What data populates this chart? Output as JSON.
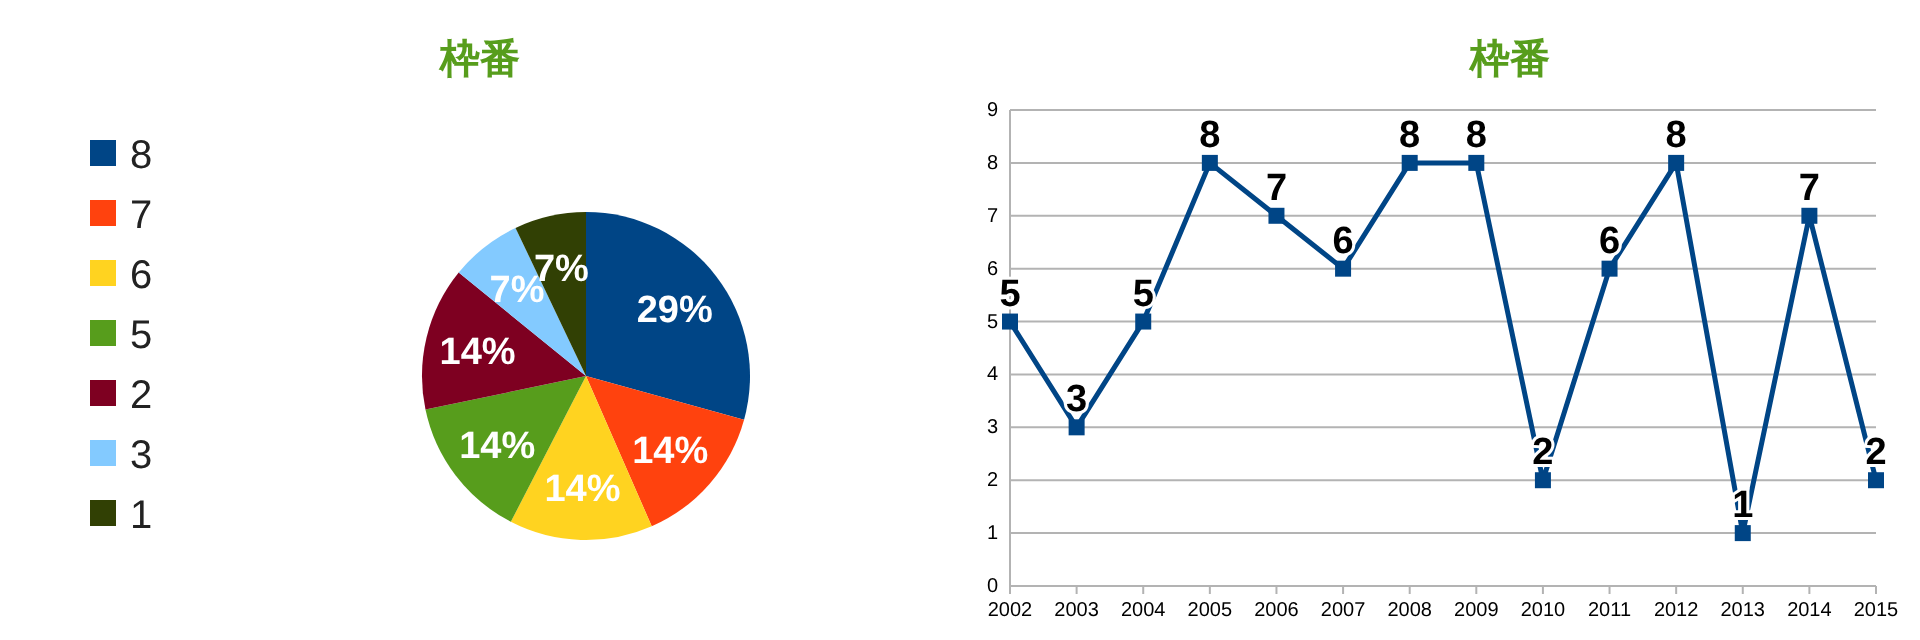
{
  "chart_data": [
    {
      "type": "pie",
      "title": "枠番",
      "categories": [
        "8",
        "7",
        "6",
        "5",
        "2",
        "3",
        "1"
      ],
      "values": [
        29,
        14,
        14,
        14,
        14,
        7,
        7
      ],
      "colors": [
        "#004586",
        "#ff420e",
        "#ffd320",
        "#579d1c",
        "#7e0021",
        "#83caff",
        "#314004"
      ],
      "value_labels": [
        "29%",
        "14%",
        "14%",
        "14%",
        "14%",
        "7%",
        "7%"
      ],
      "legend": "left"
    },
    {
      "type": "line",
      "title": "枠番",
      "categories": [
        "2002",
        "2003",
        "2004",
        "2005",
        "2006",
        "2007",
        "2008",
        "2009",
        "2010",
        "2011",
        "2012",
        "2013",
        "2014",
        "2015"
      ],
      "series": [
        {
          "color": "#004586",
          "values": [
            5,
            3,
            5,
            8,
            7,
            6,
            8,
            8,
            2,
            6,
            8,
            1,
            7,
            2
          ]
        }
      ],
      "ylim": [
        0,
        9
      ],
      "yticks": [
        0,
        1,
        2,
        3,
        4,
        5,
        6,
        7,
        8,
        9
      ],
      "grid": "y",
      "marker": "square",
      "data_labels": true
    }
  ]
}
